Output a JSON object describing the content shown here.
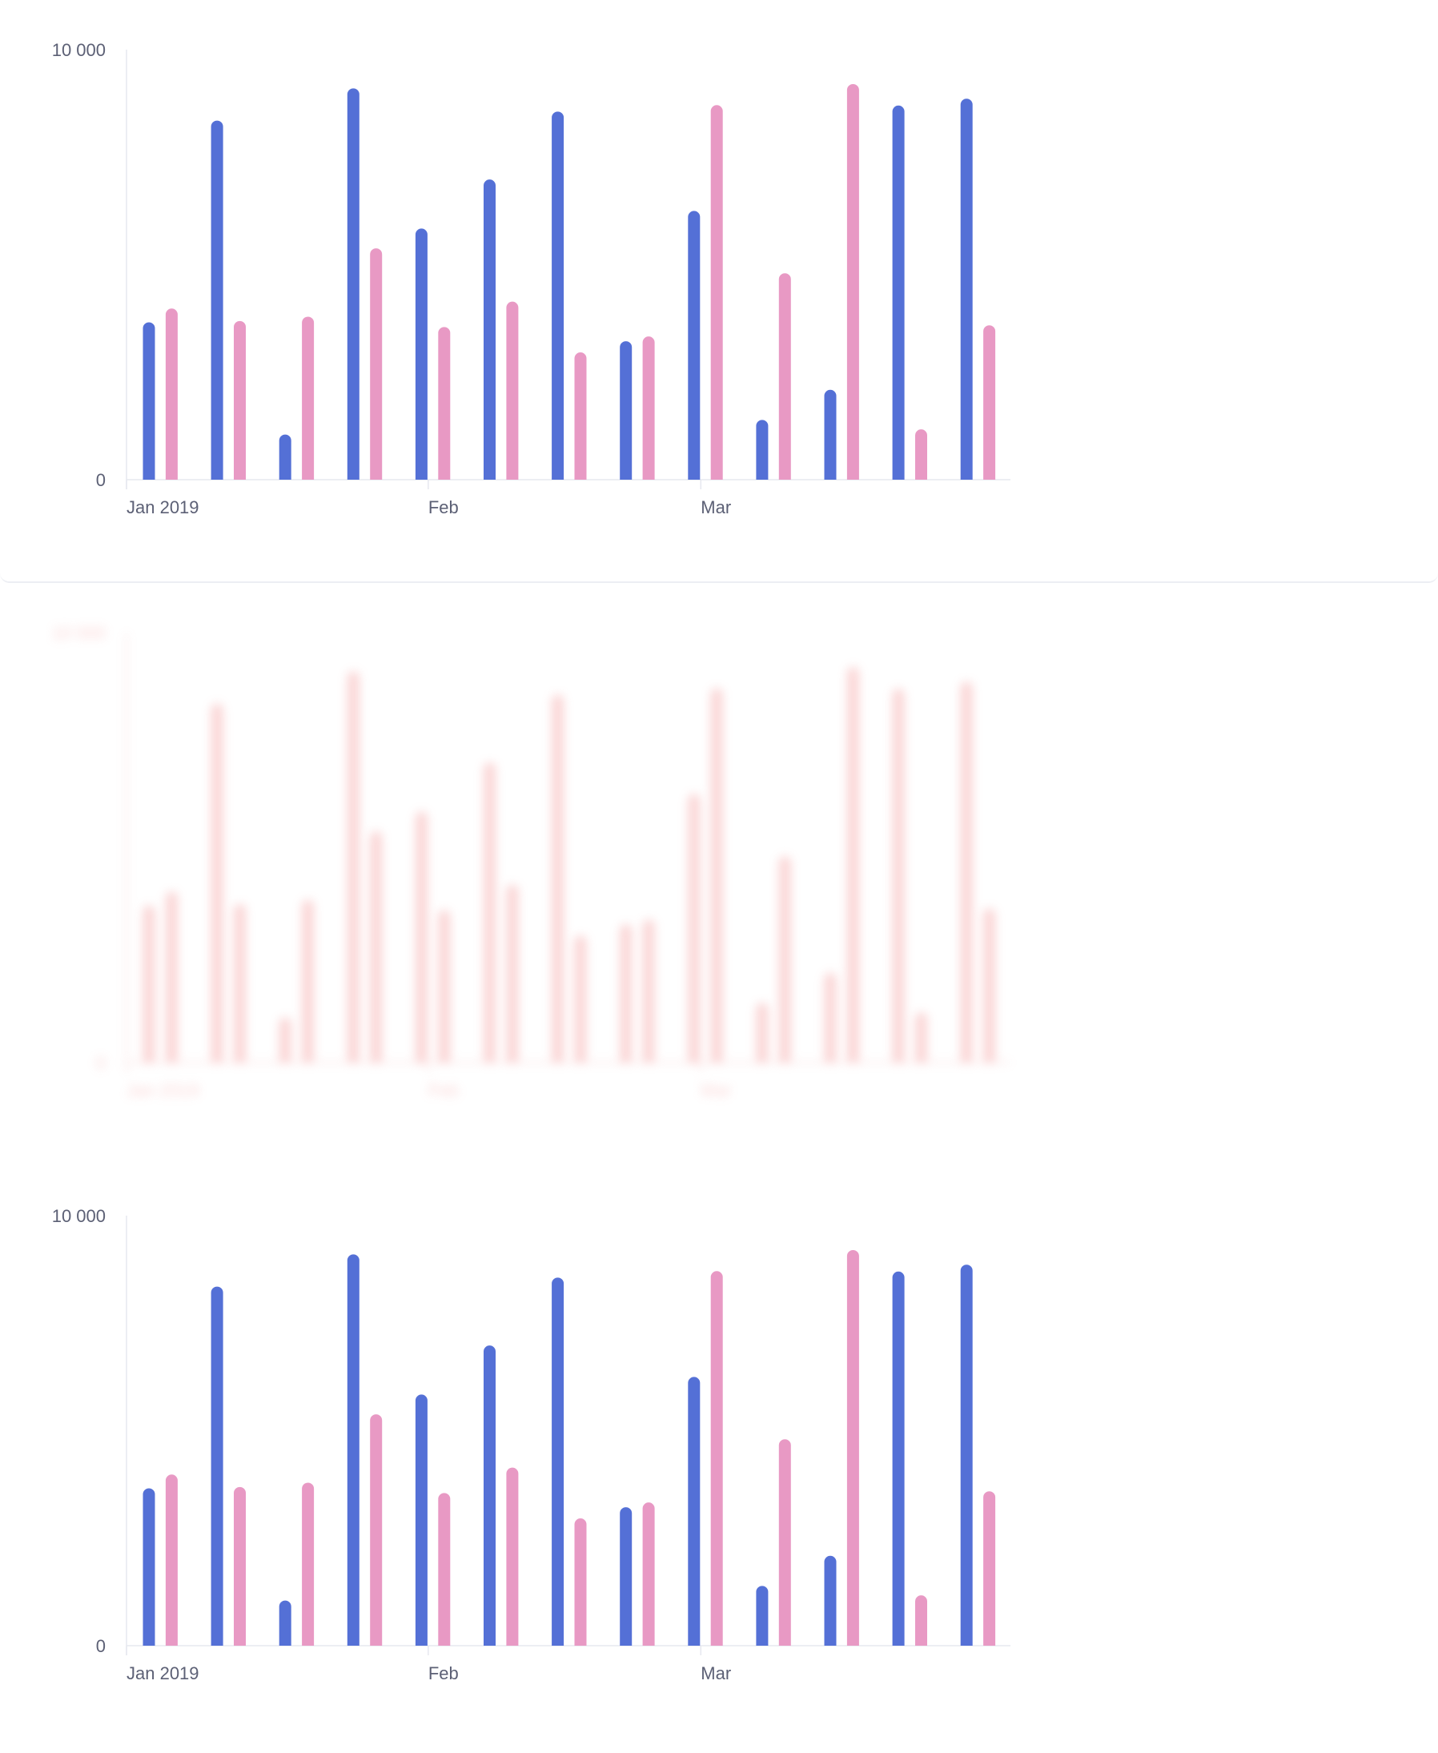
{
  "chart_data": [
    {
      "type": "bar",
      "categories": [
        "2019-01-01",
        "2019-01-08",
        "2019-01-15",
        "2019-01-22",
        "2019-01-29",
        "2019-02-05",
        "2019-02-12",
        "2019-02-19",
        "2019-02-26",
        "2019-03-05",
        "2019-03-12",
        "2019-03-19",
        "2019-03-26"
      ],
      "x_tick_labels": [
        {
          "label": "Jan 2019",
          "at": "2019-01-01"
        },
        {
          "label": "Feb",
          "at": "2019-02-01"
        },
        {
          "label": "Mar",
          "at": "2019-03-01"
        }
      ],
      "y_tick_labels": [
        "10 000",
        "0"
      ],
      "ylim": [
        0,
        10000
      ],
      "grid": false,
      "series": [
        {
          "values": [
            3660,
            8350,
            1050,
            9100,
            5840,
            6980,
            8560,
            3220,
            6250,
            1390,
            2090,
            8700,
            8860
          ],
          "color": "#5470d6"
        },
        {
          "values": [
            3980,
            3690,
            3790,
            5380,
            3550,
            4140,
            2960,
            3330,
            8710,
            4800,
            9200,
            1170,
            3590
          ],
          "color": "#e899c4"
        }
      ]
    },
    {
      "type": "bar",
      "categories": [
        "2019-01-01",
        "2019-01-08",
        "2019-01-15",
        "2019-01-22",
        "2019-01-29",
        "2019-02-05",
        "2019-02-12",
        "2019-02-19",
        "2019-02-26",
        "2019-03-05",
        "2019-03-12",
        "2019-03-19",
        "2019-03-26"
      ],
      "x_tick_labels": [
        {
          "label": "Jan 2019",
          "at": "2019-01-01"
        },
        {
          "label": "Feb",
          "at": "2019-02-01"
        },
        {
          "label": "Mar",
          "at": "2019-03-01"
        }
      ],
      "y_tick_labels": [
        "10 000",
        "0"
      ],
      "ylim": [
        0,
        10000
      ],
      "grid": false,
      "series": [
        {
          "values": [
            3660,
            8350,
            1050,
            9100,
            5840,
            6980,
            8560,
            3220,
            6250,
            1390,
            2090,
            8700,
            8860
          ],
          "color": "#5470d6"
        },
        {
          "values": [
            3980,
            3690,
            3790,
            5380,
            3550,
            4140,
            2960,
            3330,
            8710,
            4800,
            9200,
            1170,
            3590
          ],
          "color": "#e899c4"
        }
      ]
    }
  ],
  "colors": {
    "axis": "#e6e8ef",
    "tick_text": "#5c6075",
    "ghost": "#f28b8b"
  }
}
